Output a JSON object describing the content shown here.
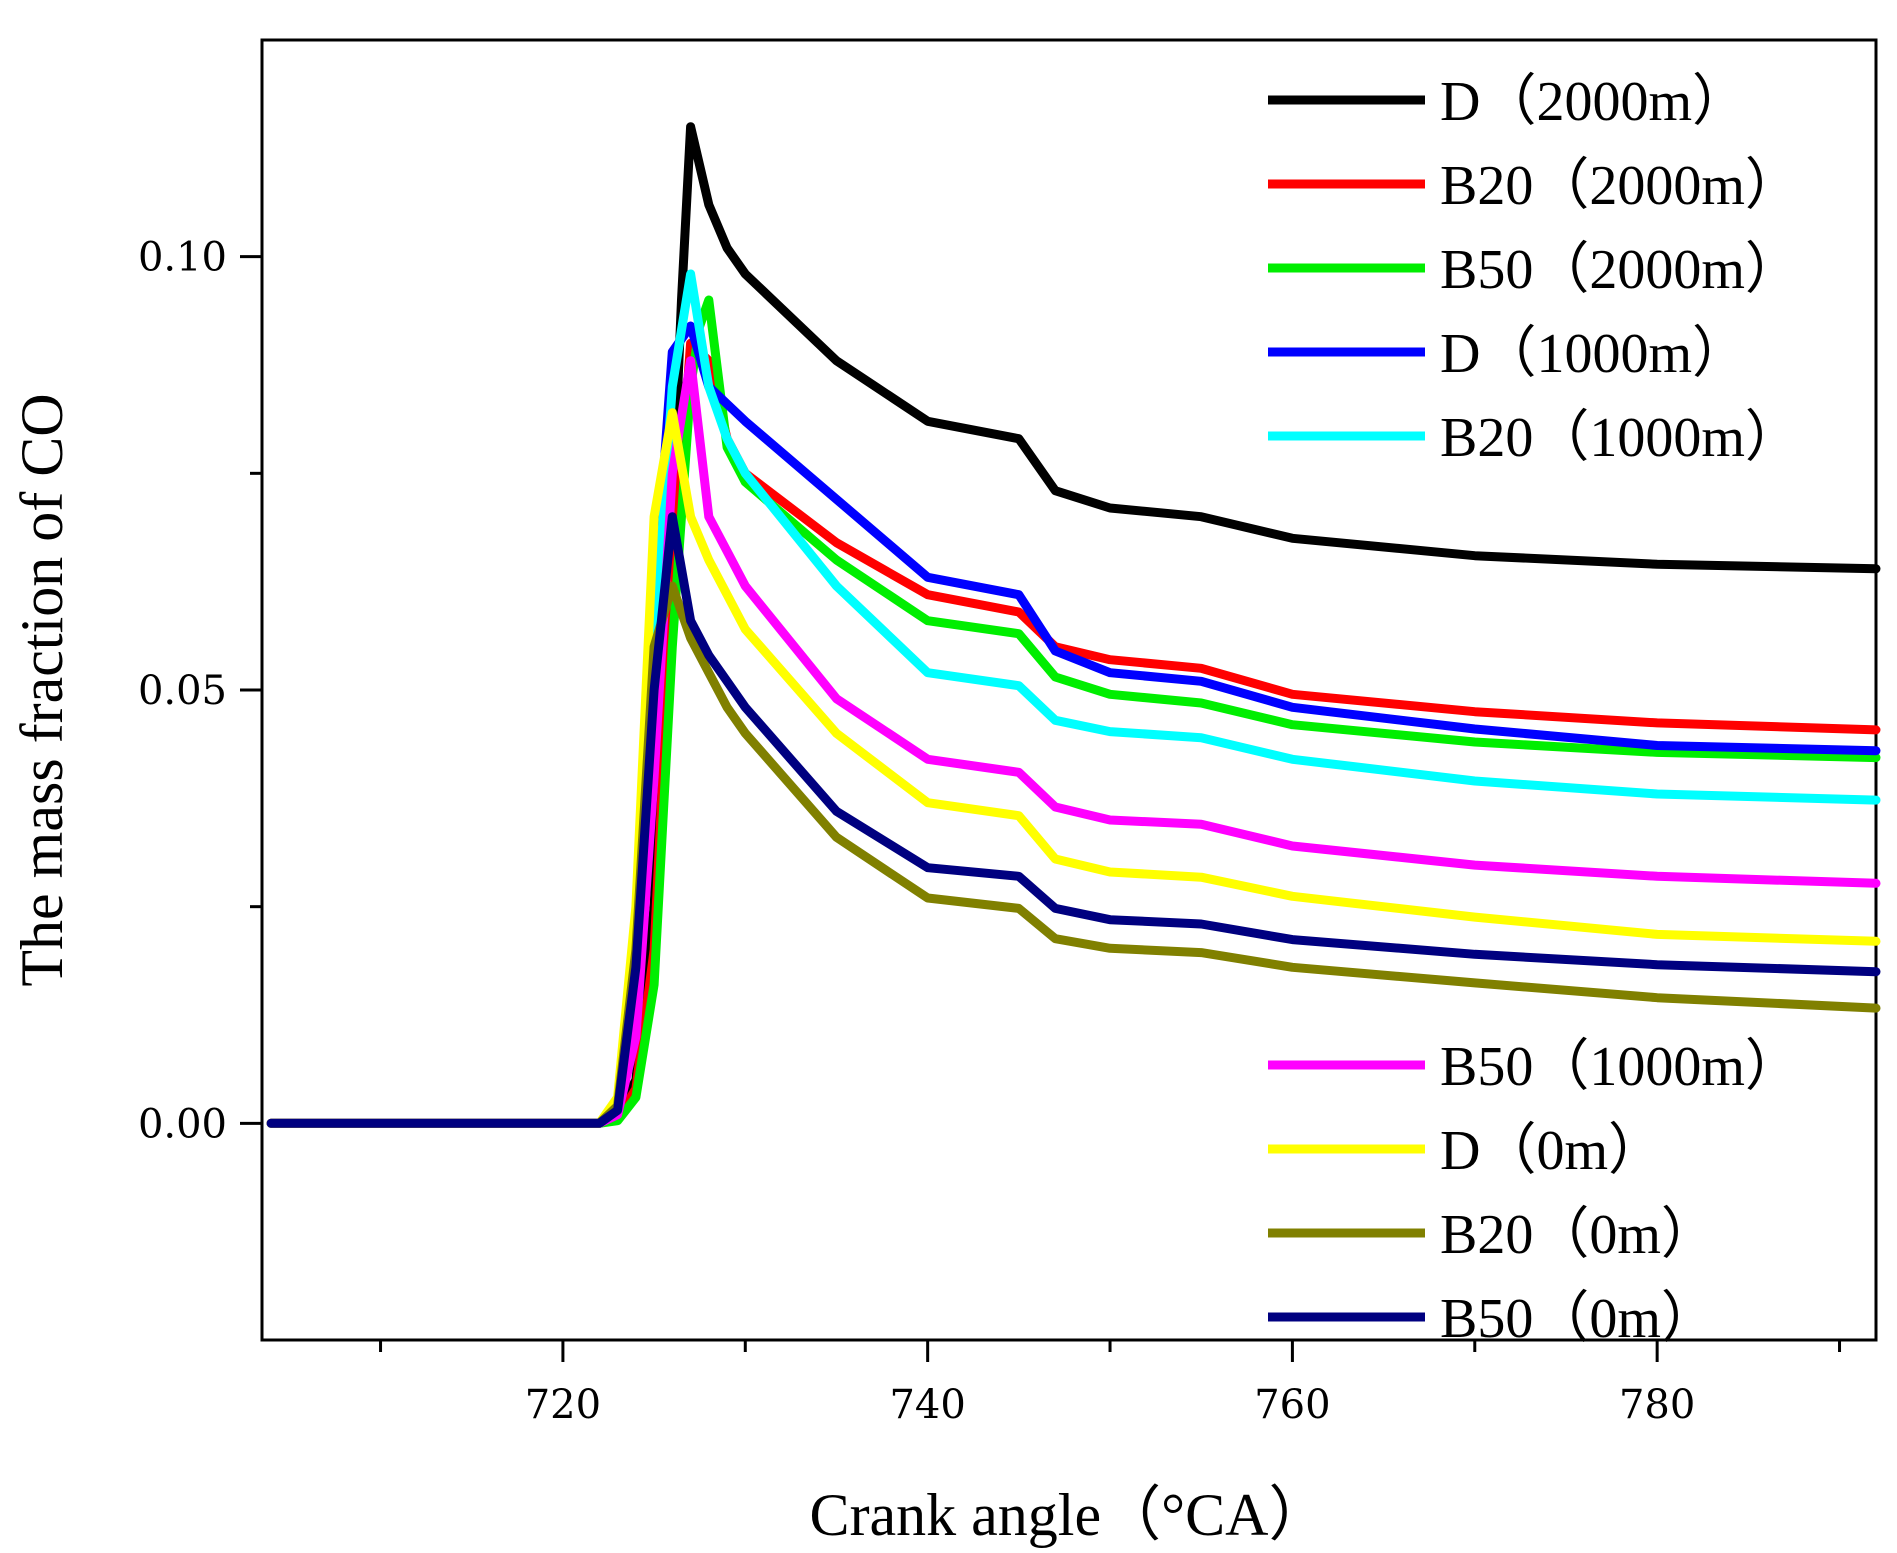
{
  "chart_data": {
    "type": "line",
    "title": "",
    "xlabel": "Crank angle（°CA）",
    "ylabel": "The mass fraction of CO",
    "xlim": [
      703.5,
      792
    ],
    "ylim": [
      -0.025,
      0.125
    ],
    "x_ticks": [
      720,
      740,
      760,
      780
    ],
    "x_tick_labels": [
      "720",
      "740",
      "760",
      "780"
    ],
    "x_minor_ticks": [
      710,
      730,
      750,
      770,
      790
    ],
    "y_ticks": [
      0.0,
      0.05,
      0.1
    ],
    "y_tick_labels": [
      "0.00",
      "0.05",
      "0.10"
    ],
    "y_minor_ticks": [
      0.025,
      0.075
    ],
    "grid": false,
    "legend": [
      {
        "position": "top-right",
        "entries": [
          0,
          1,
          2,
          3,
          4
        ]
      },
      {
        "position": "bottom-right",
        "entries": [
          5,
          6,
          7,
          8
        ]
      }
    ],
    "series": [
      {
        "name": "D（2000m）",
        "color": "#000000",
        "x": [
          704,
          722,
          723,
          724,
          725,
          726,
          726.5,
          727,
          728,
          729,
          730,
          735,
          740,
          745,
          747,
          750,
          755,
          760,
          770,
          780,
          792
        ],
        "y": [
          0,
          0,
          0.001,
          0.005,
          0.025,
          0.07,
          0.095,
          0.115,
          0.106,
          0.101,
          0.098,
          0.088,
          0.081,
          0.079,
          0.073,
          0.071,
          0.07,
          0.0675,
          0.0655,
          0.0645,
          0.064
        ]
      },
      {
        "name": "B20（2000m）",
        "color": "#ff0000",
        "x": [
          704,
          722,
          723,
          724,
          725,
          726,
          727,
          728,
          729,
          730,
          735,
          740,
          745,
          747,
          750,
          755,
          760,
          770,
          780,
          792
        ],
        "y": [
          0,
          0,
          0.0005,
          0.004,
          0.02,
          0.062,
          0.09,
          0.088,
          0.079,
          0.075,
          0.067,
          0.061,
          0.059,
          0.055,
          0.0535,
          0.0525,
          0.0495,
          0.0475,
          0.0462,
          0.0454
        ]
      },
      {
        "name": "B50（2000m）",
        "color": "#00ee00",
        "x": [
          704,
          722,
          723,
          724,
          725,
          726,
          727,
          727.5,
          728,
          729,
          730,
          735,
          740,
          745,
          747,
          750,
          755,
          760,
          770,
          780,
          792
        ],
        "y": [
          0,
          0,
          0.0003,
          0.003,
          0.016,
          0.055,
          0.085,
          0.092,
          0.095,
          0.078,
          0.074,
          0.065,
          0.058,
          0.0565,
          0.0515,
          0.0495,
          0.0485,
          0.046,
          0.044,
          0.0428,
          0.0422
        ]
      },
      {
        "name": "D（1000m）",
        "color": "#0000ff",
        "x": [
          704,
          722,
          723,
          724,
          725,
          726,
          727,
          728,
          729,
          730,
          735,
          740,
          745,
          747,
          750,
          755,
          760,
          770,
          780,
          792
        ],
        "y": [
          0,
          0,
          0.002,
          0.018,
          0.06,
          0.089,
          0.092,
          0.085,
          0.083,
          0.081,
          0.072,
          0.063,
          0.061,
          0.0545,
          0.052,
          0.051,
          0.048,
          0.0455,
          0.0436,
          0.043
        ]
      },
      {
        "name": "B20（1000m）",
        "color": "#00ffff",
        "x": [
          704,
          722,
          723,
          724,
          725,
          726,
          727,
          728,
          729,
          730,
          735,
          740,
          745,
          747,
          750,
          755,
          760,
          770,
          780,
          792
        ],
        "y": [
          0,
          0,
          0.0015,
          0.015,
          0.055,
          0.085,
          0.098,
          0.085,
          0.079,
          0.075,
          0.062,
          0.052,
          0.0505,
          0.0465,
          0.0452,
          0.0445,
          0.042,
          0.0395,
          0.038,
          0.0373
        ]
      },
      {
        "name": "B50（1000m）",
        "color": "#ff00ff",
        "x": [
          704,
          722,
          723,
          724,
          725,
          726,
          727,
          728,
          729,
          730,
          735,
          740,
          745,
          747,
          750,
          755,
          760,
          770,
          780,
          792
        ],
        "y": [
          0,
          0,
          0.001,
          0.01,
          0.04,
          0.075,
          0.088,
          0.07,
          0.066,
          0.062,
          0.049,
          0.042,
          0.0405,
          0.0365,
          0.035,
          0.0345,
          0.032,
          0.0298,
          0.0285,
          0.0277
        ]
      },
      {
        "name": "D（0m）",
        "color": "#ffff00",
        "x": [
          704,
          722,
          723,
          724,
          725,
          726,
          727,
          728,
          729,
          730,
          735,
          740,
          745,
          747,
          750,
          755,
          760,
          770,
          780,
          792
        ],
        "y": [
          0,
          0,
          0.003,
          0.025,
          0.07,
          0.082,
          0.07,
          0.065,
          0.061,
          0.057,
          0.045,
          0.037,
          0.0355,
          0.0305,
          0.029,
          0.0284,
          0.0262,
          0.0238,
          0.0218,
          0.021
        ]
      },
      {
        "name": "B20（0m）",
        "color": "#808000",
        "x": [
          704,
          722,
          723,
          724,
          725,
          726,
          727,
          728,
          729,
          730,
          735,
          740,
          745,
          747,
          750,
          755,
          760,
          770,
          780,
          792
        ],
        "y": [
          0,
          0,
          0.002,
          0.02,
          0.055,
          0.062,
          0.056,
          0.052,
          0.048,
          0.045,
          0.033,
          0.026,
          0.0248,
          0.0213,
          0.0202,
          0.0197,
          0.018,
          0.0162,
          0.0145,
          0.0133
        ]
      },
      {
        "name": "B50（0m）",
        "color": "#000080",
        "x": [
          704,
          722,
          723,
          724,
          725,
          726,
          727,
          728,
          729,
          730,
          735,
          740,
          745,
          747,
          750,
          755,
          760,
          770,
          780,
          792
        ],
        "y": [
          0,
          0,
          0.0015,
          0.018,
          0.05,
          0.07,
          0.058,
          0.054,
          0.051,
          0.048,
          0.036,
          0.0295,
          0.0285,
          0.0248,
          0.0235,
          0.023,
          0.0212,
          0.0195,
          0.0183,
          0.0175
        ]
      }
    ]
  }
}
